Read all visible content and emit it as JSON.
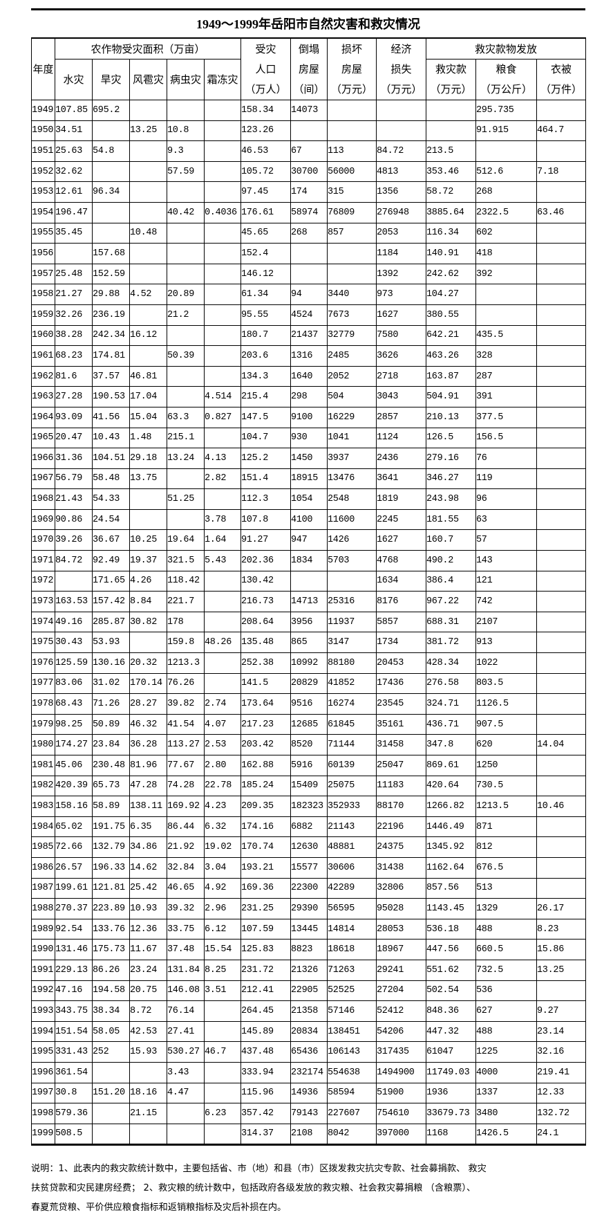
{
  "title": "1949～1999年岳阳市自然灾害和救灾情况",
  "header": {
    "year": "年度",
    "crop_group": "农作物受灾面积（万亩）",
    "crop_cols": [
      "水灾",
      "旱灾",
      "风雹灾",
      "病虫灾",
      "霜冻灾"
    ],
    "people": [
      "受灾",
      "人口",
      "（万人）"
    ],
    "collapsed": [
      "倒塌",
      "房屋",
      "（间）"
    ],
    "damaged": [
      "损坏",
      "房屋",
      "（万元）"
    ],
    "loss": [
      "经济",
      "损失",
      "（万元）"
    ],
    "relief_group": "救灾款物发放",
    "relief_money": [
      "救灾款",
      "（万元）"
    ],
    "relief_grain": [
      "粮食",
      "（万公斤）"
    ],
    "relief_clothes": [
      "衣被",
      "（万件）"
    ]
  },
  "rows": [
    [
      "1949",
      "107.85",
      "695.2",
      "",
      "",
      "",
      "158.34",
      "14073",
      "",
      "",
      "",
      "295.735",
      ""
    ],
    [
      "1950",
      "34.51",
      "",
      "13.25",
      "10.8",
      "",
      "123.26",
      "",
      "",
      "",
      "",
      "91.915",
      "464.7"
    ],
    [
      "1951",
      "25.63",
      "54.8",
      "",
      "9.3",
      "",
      "46.53",
      "67",
      "113",
      "84.72",
      "213.5",
      "",
      ""
    ],
    [
      "1952",
      "32.62",
      "",
      "",
      "57.59",
      "",
      "105.72",
      "30700",
      "56000",
      "4813",
      "353.46",
      "512.6",
      "7.18"
    ],
    [
      "1953",
      "12.61",
      "96.34",
      "",
      "",
      "",
      "97.45",
      "174",
      "315",
      "1356",
      "58.72",
      "268",
      ""
    ],
    [
      "1954",
      "196.47",
      "",
      "",
      "40.42",
      "0.4036",
      "176.61",
      "58974",
      "76809",
      "276948",
      "3885.64",
      "2322.5",
      "63.46"
    ],
    [
      "1955",
      "35.45",
      "",
      "10.48",
      "",
      "",
      "45.65",
      "268",
      "857",
      "2053",
      "116.34",
      "602",
      ""
    ],
    [
      "1956",
      "",
      "157.68",
      "",
      "",
      "",
      "152.4",
      "",
      "",
      "1184",
      "140.91",
      "418",
      ""
    ],
    [
      "1957",
      "25.48",
      "152.59",
      "",
      "",
      "",
      "146.12",
      "",
      "",
      "1392",
      "242.62",
      "392",
      ""
    ],
    [
      "1958",
      "21.27",
      "29.88",
      "4.52",
      "20.89",
      "",
      "61.34",
      "94",
      "3440",
      "973",
      "104.27",
      "",
      ""
    ],
    [
      "1959",
      "32.26",
      "236.19",
      "",
      "21.2",
      "",
      "95.55",
      "4524",
      "7673",
      "1627",
      "380.55",
      "",
      ""
    ],
    [
      "1960",
      "38.28",
      "242.34",
      "16.12",
      "",
      "",
      "180.7",
      "21437",
      "32779",
      "7580",
      "642.21",
      "435.5",
      ""
    ],
    [
      "1961",
      "68.23",
      "174.81",
      "",
      "50.39",
      "",
      "203.6",
      "1316",
      "2485",
      "3626",
      "463.26",
      "328",
      ""
    ],
    [
      "1962",
      "81.6",
      "37.57",
      "46.81",
      "",
      "",
      "134.3",
      "1640",
      "2052",
      "2718",
      "163.87",
      "287",
      ""
    ],
    [
      "1963",
      "27.28",
      "190.53",
      "17.04",
      "",
      "4.514",
      "215.4",
      "298",
      "504",
      "3043",
      "504.91",
      "391",
      ""
    ],
    [
      "1964",
      "93.09",
      "41.56",
      "15.04",
      "63.3",
      "0.827",
      "147.5",
      "9100",
      "16229",
      "2857",
      "210.13",
      "377.5",
      ""
    ],
    [
      "1965",
      "20.47",
      "10.43",
      "1.48",
      "215.1",
      "",
      "104.7",
      "930",
      "1041",
      "1124",
      "126.5",
      "156.5",
      ""
    ],
    [
      "1966",
      "31.36",
      "104.51",
      "29.18",
      "13.24",
      "4.13",
      "125.2",
      "1450",
      "3937",
      "2436",
      "279.16",
      "76",
      ""
    ],
    [
      "1967",
      "56.79",
      "58.48",
      "13.75",
      "",
      "2.82",
      "151.4",
      "18915",
      "13476",
      "3641",
      "346.27",
      "119",
      ""
    ],
    [
      "1968",
      "21.43",
      "54.33",
      "",
      "51.25",
      "",
      "112.3",
      "1054",
      "2548",
      "1819",
      "243.98",
      "96",
      ""
    ],
    [
      "1969",
      "90.86",
      "24.54",
      "",
      "",
      "3.78",
      "107.8",
      "4100",
      "11600",
      "2245",
      "181.55",
      "63",
      ""
    ],
    [
      "1970",
      "39.26",
      "36.67",
      "10.25",
      "19.64",
      "1.64",
      "91.27",
      "947",
      "1426",
      "1627",
      "160.7",
      "57",
      ""
    ],
    [
      "1971",
      "84.72",
      "92.49",
      "19.37",
      "321.5",
      "5.43",
      "202.36",
      "1834",
      "5703",
      "4768",
      "490.2",
      "143",
      ""
    ],
    [
      "1972",
      "",
      "171.65",
      "4.26",
      "118.42",
      "",
      "130.42",
      "",
      "",
      "1634",
      "386.4",
      "121",
      ""
    ],
    [
      "1973",
      "163.53",
      "157.42",
      "8.84",
      "221.7",
      "",
      "216.73",
      "14713",
      "25316",
      "8176",
      "967.22",
      "742",
      ""
    ],
    [
      "1974",
      "49.16",
      "285.87",
      "30.82",
      "178",
      "",
      "208.64",
      "3956",
      "11937",
      "5857",
      "688.31",
      "2107",
      ""
    ],
    [
      "1975",
      "30.43",
      "53.93",
      "",
      "159.8",
      "48.26",
      "135.48",
      "865",
      "3147",
      "1734",
      "381.72",
      "913",
      ""
    ],
    [
      "1976",
      "125.59",
      "130.16",
      "20.32",
      "1213.3",
      "",
      "252.38",
      "10992",
      "88180",
      "20453",
      "428.34",
      "1022",
      ""
    ],
    [
      "1977",
      "83.06",
      "31.02",
      "170.14",
      "76.26",
      "",
      "141.5",
      "20829",
      "41852",
      "17436",
      "276.58",
      "803.5",
      ""
    ],
    [
      "1978",
      "68.43",
      "71.26",
      "28.27",
      "39.82",
      "2.74",
      "173.64",
      "9516",
      "16274",
      "23545",
      "324.71",
      "1126.5",
      ""
    ],
    [
      "1979",
      "98.25",
      "50.89",
      "46.32",
      "41.54",
      "4.07",
      "217.23",
      "12685",
      "61845",
      "35161",
      "436.71",
      "907.5",
      ""
    ],
    [
      "1980",
      "174.27",
      "23.84",
      "36.28",
      "113.27",
      "2.53",
      "203.42",
      "8520",
      "71144",
      "31458",
      "347.8",
      "620",
      "14.04"
    ],
    [
      "1981",
      "45.06",
      "230.48",
      "81.96",
      "77.67",
      "2.80",
      "162.88",
      "5916",
      "60139",
      "25047",
      "869.61",
      "1250",
      ""
    ],
    [
      "1982",
      "420.39",
      "65.73",
      "47.28",
      "74.28",
      "22.78",
      "185.24",
      "15409",
      "25075",
      "11183",
      "420.64",
      "730.5",
      ""
    ],
    [
      "1983",
      "158.16",
      "58.89",
      "138.11",
      "169.92",
      "4.23",
      "209.35",
      "182323",
      "352933",
      "88170",
      "1266.82",
      "1213.5",
      "10.46"
    ],
    [
      "1984",
      "65.02",
      "191.75",
      "6.35",
      "86.44",
      "6.32",
      "174.16",
      "6882",
      "21143",
      "22196",
      "1446.49",
      "871",
      ""
    ],
    [
      "1985",
      "72.66",
      "132.79",
      "34.86",
      "21.92",
      "19.02",
      "170.74",
      "12630",
      "48881",
      "24375",
      "1345.92",
      "812",
      ""
    ],
    [
      "1986",
      "26.57",
      "196.33",
      "14.62",
      "32.84",
      "3.04",
      "193.21",
      "15577",
      "30606",
      "31438",
      "1162.64",
      "676.5",
      ""
    ],
    [
      "1987",
      "199.61",
      "121.81",
      "25.42",
      "46.65",
      "4.92",
      "169.36",
      "22300",
      "42289",
      "32806",
      "857.56",
      "513",
      ""
    ],
    [
      "1988",
      "270.37",
      "223.89",
      "10.93",
      "39.32",
      "2.96",
      "231.25",
      "29390",
      "56595",
      "95028",
      "1143.45",
      "1329",
      "26.17"
    ],
    [
      "1989",
      "92.54",
      "133.76",
      "12.36",
      "33.75",
      "6.12",
      "107.59",
      "13445",
      "14814",
      "28053",
      "536.18",
      "488",
      "8.23"
    ],
    [
      "1990",
      "131.46",
      "175.73",
      "11.67",
      "37.48",
      "15.54",
      "125.83",
      "8823",
      "18618",
      "18967",
      "447.56",
      "660.5",
      "15.86"
    ],
    [
      "1991",
      "229.13",
      "86.26",
      "23.24",
      "131.84",
      "8.25",
      "231.72",
      "21326",
      "71263",
      "29241",
      "551.62",
      "732.5",
      "13.25"
    ],
    [
      "1992",
      "47.16",
      "194.58",
      "20.75",
      "146.08",
      "3.51",
      "212.41",
      "22905",
      "52525",
      "27204",
      "502.54",
      "536",
      ""
    ],
    [
      "1993",
      "343.75",
      "38.34",
      "8.72",
      "76.14",
      "",
      "264.45",
      "21358",
      "57146",
      "52412",
      "848.36",
      "627",
      "9.27"
    ],
    [
      "1994",
      "151.54",
      "58.05",
      "42.53",
      "27.41",
      "",
      "145.89",
      "20834",
      "138451",
      "54206",
      "447.32",
      "488",
      "23.14"
    ],
    [
      "1995",
      "331.43",
      "252",
      "15.93",
      "530.27",
      "46.7",
      "437.48",
      "65436",
      "106143",
      "317435",
      "61047",
      "1225",
      "32.16"
    ],
    [
      "1996",
      "361.54",
      "",
      "",
      "3.43",
      "",
      "333.94",
      "232174",
      "554638",
      "1494900",
      "11749.03",
      "4000",
      "219.41"
    ],
    [
      "1997",
      "30.8",
      "151.20",
      "18.16",
      "4.47",
      "",
      "115.96",
      "14936",
      "58594",
      "51900",
      "1936",
      "1337",
      "12.33"
    ],
    [
      "1998",
      "579.36",
      "",
      "21.15",
      "",
      "6.23",
      "357.42",
      "79143",
      "227607",
      "754610",
      "33679.73",
      "3480",
      "132.72"
    ],
    [
      "1999",
      "508.5",
      "",
      "",
      "",
      "",
      "314.37",
      "2108",
      "8042",
      "397000",
      "1168",
      "1426.5",
      "24.1"
    ]
  ],
  "notes": [
    "说明：1、此表内的救灾款统计数中，主要包括省、市（地）和县（市）区拨发救灾抗灾专款、社会募捐款、 救灾",
    "扶贫贷款和灾民建房经费； 2、救灾粮的统计数中，包括政府各级发放的救灾粮、社会救灾募捐粮 （含粮票）、",
    "春夏荒贷粮、平价供应粮食指标和返销粮指标及灾后补损在内。"
  ]
}
